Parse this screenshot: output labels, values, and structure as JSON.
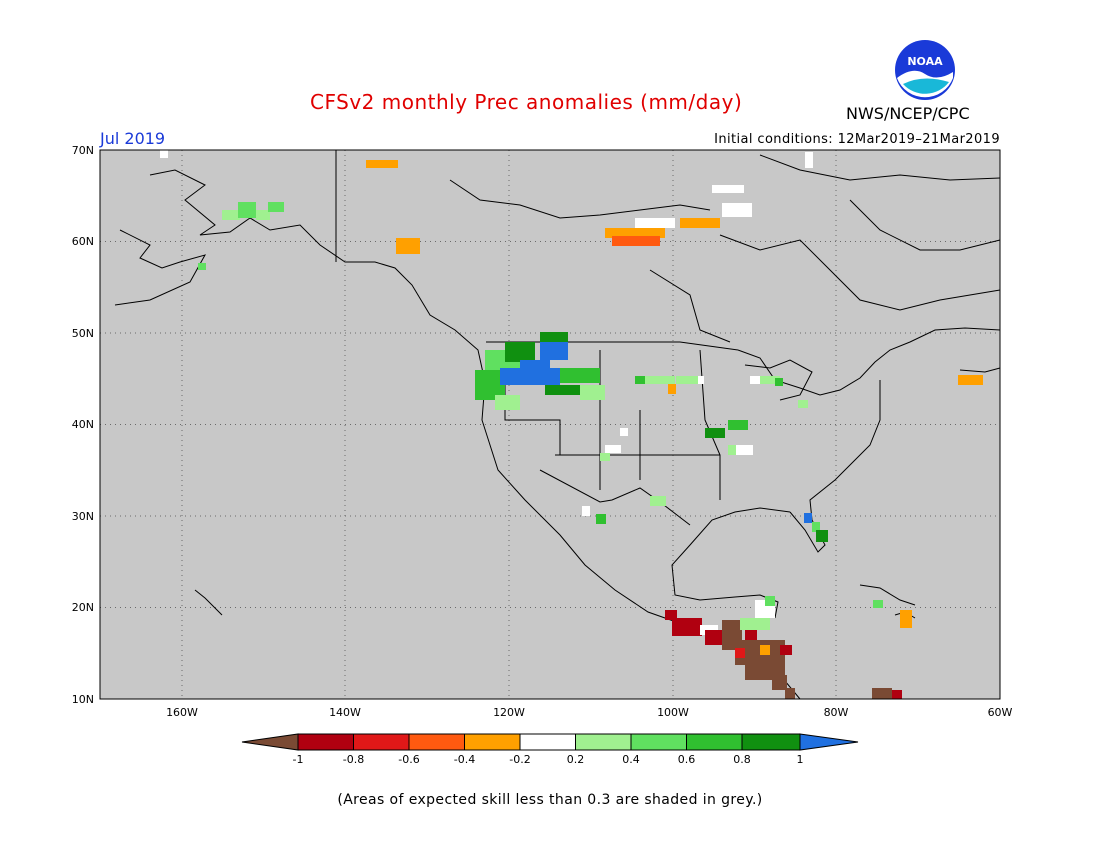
{
  "title": "CFSv2 monthly Prec anomalies (mm/day)",
  "agency": "NWS/NCEP/CPC",
  "logo_text": "NOAA",
  "month_label": "Jul 2019",
  "initial_conditions": "Initial conditions: 12Mar2019–21Mar2019",
  "footnote": "(Areas of expected skill less than 0.3 are shaded in grey.)",
  "map": {
    "background_color": "#c8c8c8",
    "lat_ticks": [
      "70N",
      "60N",
      "50N",
      "40N",
      "30N",
      "20N",
      "10N"
    ],
    "lon_ticks": [
      "160W",
      "140W",
      "120W",
      "100W",
      "80W",
      "60W"
    ],
    "grid": true
  },
  "colorbar": {
    "ticks": [
      "-1",
      "-0.8",
      "-0.6",
      "-0.4",
      "-0.2",
      "0.2",
      "0.4",
      "0.6",
      "0.8",
      "1"
    ],
    "colors": [
      "#7a4a34",
      "#b00010",
      "#e01818",
      "#ff5a10",
      "#ffa000",
      "#ffffff",
      "#a0f090",
      "#60e060",
      "#30c030",
      "#109010",
      "#2070e0"
    ]
  }
}
